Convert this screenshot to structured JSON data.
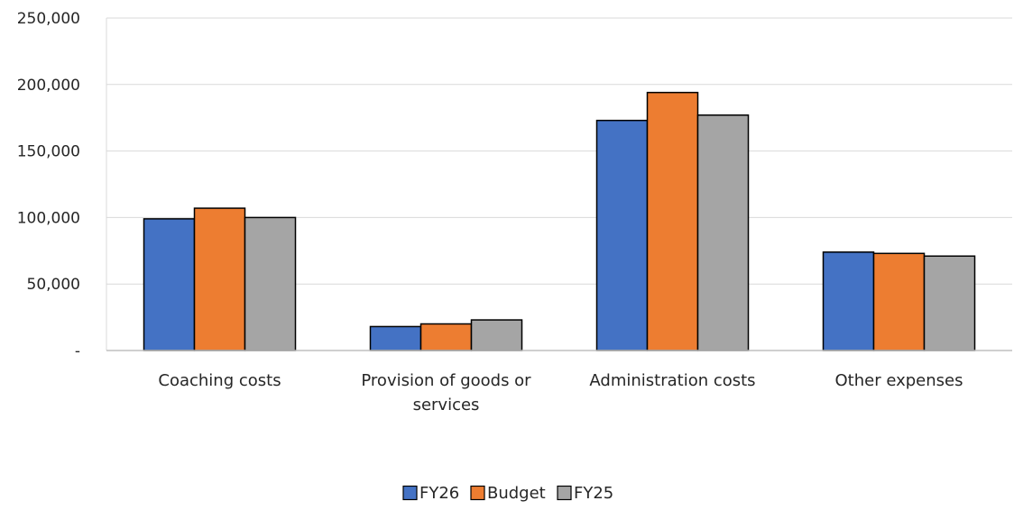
{
  "chart_data": {
    "type": "bar",
    "categories": [
      [
        "Coaching costs"
      ],
      [
        "Provision of goods or",
        "services"
      ],
      [
        "Administration costs"
      ],
      [
        "Other expenses"
      ]
    ],
    "series": [
      {
        "name": "FY26",
        "color": "#4472c4",
        "values": [
          99000,
          18000,
          173000,
          74000
        ]
      },
      {
        "name": "Budget",
        "color": "#ed7d31",
        "values": [
          107000,
          20000,
          194000,
          73000
        ]
      },
      {
        "name": "FY25",
        "color": "#a5a5a5",
        "values": [
          100000,
          23000,
          177000,
          71000
        ]
      }
    ],
    "ylim": [
      0,
      250000
    ],
    "yticks": [
      {
        "value": 0,
        "label": "-"
      },
      {
        "value": 50000,
        "label": "50,000"
      },
      {
        "value": 100000,
        "label": "100,000"
      },
      {
        "value": 150000,
        "label": "150,000"
      },
      {
        "value": 200000,
        "label": "200,000"
      },
      {
        "value": 250000,
        "label": "250,000"
      }
    ],
    "grid": true,
    "legend_position": "bottom-center",
    "title": "",
    "xlabel": "",
    "ylabel": ""
  }
}
